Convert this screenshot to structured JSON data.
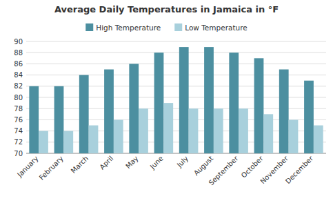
{
  "chart_data": {
    "type": "bar",
    "title": "Average Daily Temperatures in Jamaica in °F",
    "categories": [
      "January",
      "February",
      "March",
      "April",
      "May",
      "June",
      "July",
      "August",
      "September",
      "October",
      "November",
      "December"
    ],
    "series": [
      {
        "name": "High Temperature",
        "color": "#4C8FA0",
        "values": [
          82,
          82,
          84,
          85,
          86,
          88,
          89,
          89,
          88,
          87,
          85,
          83
        ]
      },
      {
        "name": "Low Temperature",
        "color": "#A8D0DC",
        "values": [
          74,
          74,
          75,
          76,
          78,
          79,
          78,
          78,
          78,
          77,
          76,
          75
        ]
      }
    ],
    "ylim": [
      70,
      90
    ],
    "yticks": [
      70,
      72,
      74,
      76,
      78,
      80,
      82,
      84,
      86,
      88,
      90
    ],
    "grid": true,
    "legend": "top"
  }
}
